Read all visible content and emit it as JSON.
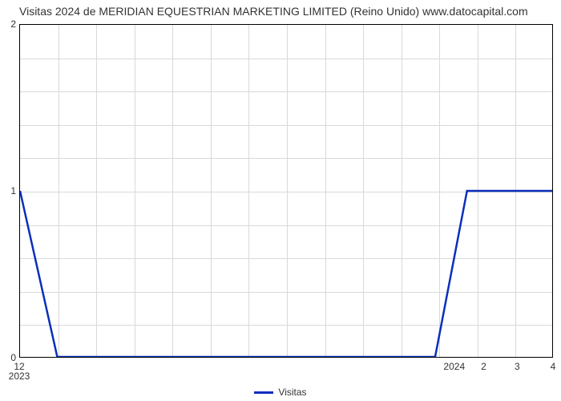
{
  "title": "Visitas 2024 de MERIDIAN EQUESTRIAN MARKETING LIMITED (Reino Unido) www.datocapital.com",
  "chart": {
    "type": "line",
    "x_range_months": 5,
    "series": {
      "label": "Visitas",
      "color": "#0b2fbb",
      "line_width": 2.5,
      "points": [
        {
          "x": 0.0,
          "y": 1
        },
        {
          "x": 0.18,
          "y": 0
        },
        {
          "x": 3.88,
          "y": 0
        },
        {
          "x": 4.06,
          "y": 1
        },
        {
          "x": 5.0,
          "y": 1
        }
      ]
    },
    "ylim": [
      0,
      2
    ],
    "y_ticks": [
      0,
      1,
      2
    ],
    "x_major_ticks": [
      {
        "value": 0,
        "label": "12",
        "year": "2023"
      },
      {
        "value": 1,
        "label": "2024",
        "year": ""
      },
      {
        "value": 2,
        "label": "2",
        "year": ""
      },
      {
        "value": 3,
        "label": "3",
        "year": ""
      },
      {
        "value": 4,
        "label": "4",
        "year": ""
      }
    ],
    "grid_color": "#d9d9d9",
    "grid_minor_x_count": 13,
    "grid_minor_y_count_between": 4,
    "background_color": "#ffffff",
    "border_color": "#000000",
    "tick_fontsize": 12,
    "title_fontsize": 14
  },
  "legend": {
    "label": "Visitas",
    "swatch_color": "#0b2fbb"
  }
}
